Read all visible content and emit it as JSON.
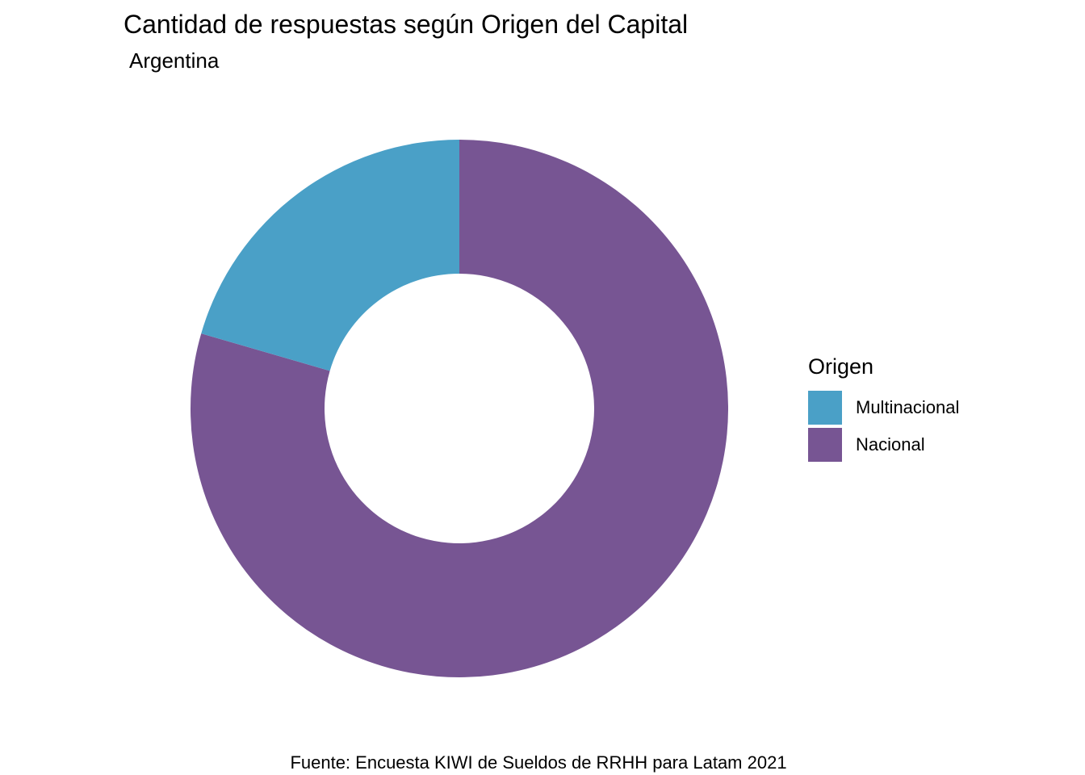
{
  "chart_data": {
    "type": "pie",
    "variant": "donut",
    "title": "Cantidad de respuestas según Origen del  Capital",
    "subtitle": "Argentina",
    "caption": "Fuente: Encuesta KIWI de Sueldos de RRHH para Latam 2021",
    "legend": {
      "title": "Origen",
      "placement": "right"
    },
    "slices": [
      {
        "label": "Multinacional",
        "value": 20.5,
        "color": "#4aa0c7"
      },
      {
        "label": "Nacional",
        "value": 79.5,
        "color": "#775593"
      }
    ]
  }
}
